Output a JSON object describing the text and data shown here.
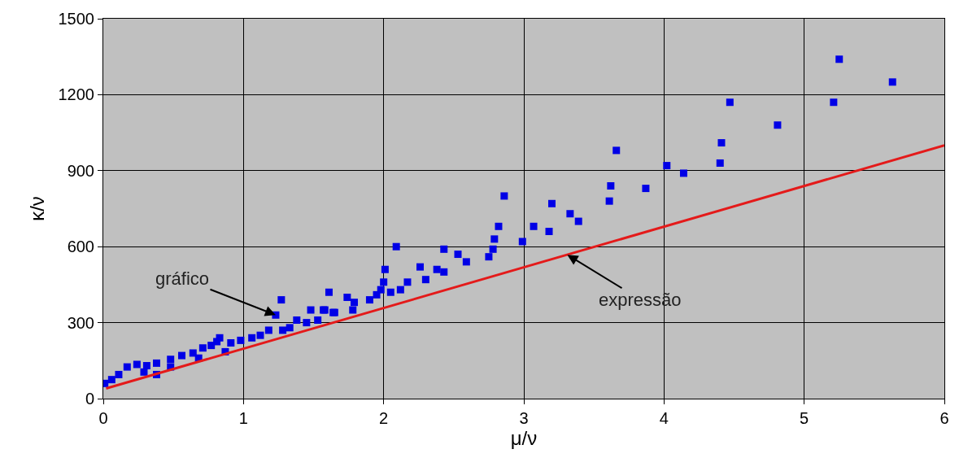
{
  "chart_data": {
    "type": "scatter",
    "xlabel": "μ/ν",
    "ylabel": "κ/ν",
    "xlim": [
      0,
      6
    ],
    "ylim": [
      0,
      1500
    ],
    "xticks": [
      0,
      1,
      2,
      3,
      4,
      5,
      6
    ],
    "yticks": [
      0,
      300,
      600,
      900,
      1200,
      1500
    ],
    "grid": true,
    "legend": false,
    "series": [
      {
        "marker": "square",
        "color": "#0000e6",
        "x": [
          5.25,
          5.63,
          5.21,
          4.81,
          4.47,
          4.41,
          4.4,
          4.02,
          4.14,
          3.66,
          3.62,
          3.61,
          3.87,
          3.2,
          3.07,
          3.18,
          3.33,
          3.39,
          2.99,
          2.86,
          2.82,
          2.79,
          2.78,
          2.75,
          2.09,
          2.01,
          2.0,
          1.98,
          1.95,
          1.9,
          2.05,
          2.12,
          2.17,
          2.26,
          2.3,
          2.38,
          2.43,
          2.43,
          2.53,
          2.59,
          1.61,
          1.74,
          1.79,
          1.78,
          1.64,
          1.58,
          1.27,
          1.23,
          1.48,
          1.57,
          1.65,
          1.38,
          1.33,
          1.28,
          1.45,
          1.53,
          0.83,
          1.18,
          0.01,
          0.06,
          0.11,
          0.17,
          0.24,
          0.31,
          0.38,
          0.38,
          0.48,
          0.56,
          0.64,
          0.71,
          0.77,
          0.81,
          0.91,
          0.98,
          1.06,
          1.12,
          0.29,
          0.48,
          0.68,
          0.87
        ],
        "values": [
          1340,
          1250,
          1170,
          1080,
          1170,
          1010,
          930,
          920,
          890,
          980,
          840,
          780,
          830,
          770,
          680,
          660,
          730,
          700,
          620,
          800,
          680,
          630,
          590,
          560,
          600,
          510,
          460,
          430,
          410,
          390,
          420,
          430,
          460,
          520,
          470,
          510,
          500,
          590,
          570,
          540,
          420,
          400,
          380,
          350,
          340,
          350,
          390,
          330,
          350,
          350,
          340,
          310,
          280,
          270,
          300,
          310,
          240,
          270,
          60,
          75,
          95,
          125,
          135,
          130,
          95,
          140,
          155,
          170,
          180,
          200,
          210,
          225,
          220,
          230,
          240,
          250,
          105,
          125,
          160,
          185
        ]
      },
      {
        "type": "line",
        "marker": "none",
        "line_style": "solid",
        "color": "#e41a1a",
        "x": [
          0.02,
          6
        ],
        "values": [
          40,
          1000
        ]
      }
    ],
    "annotations": [
      {
        "text": "gráfico",
        "x": 1.23,
        "y": 330
      },
      {
        "text": "expressão",
        "x": 3.31,
        "y": 568
      }
    ]
  }
}
